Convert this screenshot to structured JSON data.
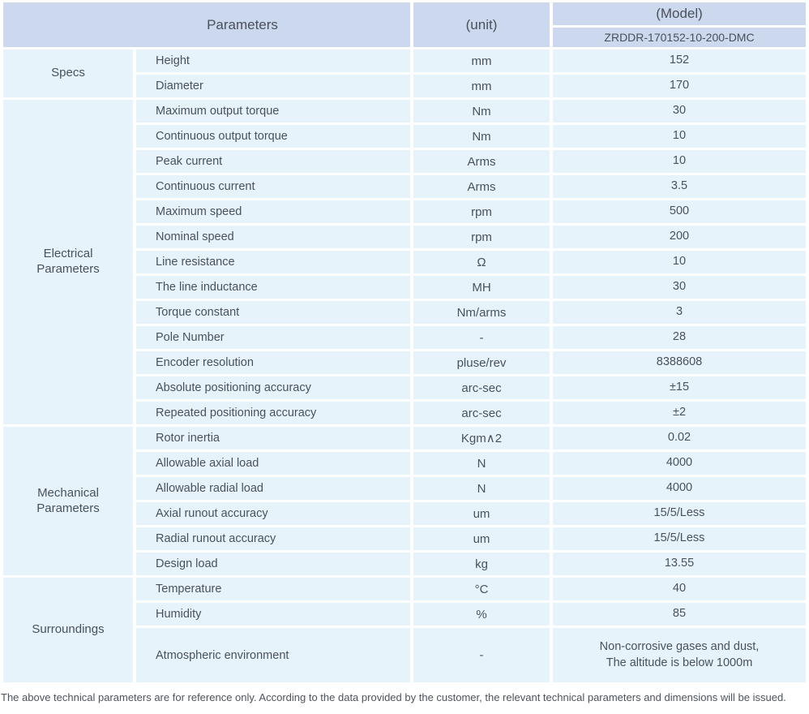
{
  "header": {
    "parameters_label": "Parameters",
    "unit_label": "(unit)",
    "model_label": "(Model)",
    "model_value": "ZRDDR-170152-10-200-DMC"
  },
  "sections": [
    {
      "name": "Specs",
      "rows": [
        {
          "param": "Height",
          "unit": "mm",
          "value": "152"
        },
        {
          "param": "Diameter",
          "unit": "mm",
          "value": "170"
        }
      ]
    },
    {
      "name": "Electrical\nParameters",
      "rows": [
        {
          "param": "Maximum output torque",
          "unit": "Nm",
          "value": "30"
        },
        {
          "param": "Continuous output torque",
          "unit": "Nm",
          "value": "10"
        },
        {
          "param": "Peak current",
          "unit": "Arms",
          "value": "10"
        },
        {
          "param": "Continuous current",
          "unit": "Arms",
          "value": "3.5"
        },
        {
          "param": "Maximum speed",
          "unit": "rpm",
          "value": "500"
        },
        {
          "param": "Nominal speed",
          "unit": "rpm",
          "value": "200"
        },
        {
          "param": "Line resistance",
          "unit": "Ω",
          "value": "10"
        },
        {
          "param": "The line inductance",
          "unit": "MH",
          "value": "30"
        },
        {
          "param": "Torque constant",
          "unit": "Nm/arms",
          "value": "3"
        },
        {
          "param": "Pole Number",
          "unit": "-",
          "value": "28"
        },
        {
          "param": "Encoder resolution",
          "unit": "pluse/rev",
          "value": "8388608"
        },
        {
          "param": "Absolute positioning accuracy",
          "unit": "arc-sec",
          "value": "±15"
        },
        {
          "param": "Repeated positioning accuracy",
          "unit": "arc-sec",
          "value": "±2"
        }
      ]
    },
    {
      "name": "Mechanical\nParameters",
      "rows": [
        {
          "param": "Rotor inertia",
          "unit": "Kgm∧2",
          "value": "0.02"
        },
        {
          "param": "Allowable axial load",
          "unit": "N",
          "value": "4000"
        },
        {
          "param": "Allowable radial load",
          "unit": "N",
          "value": "4000"
        },
        {
          "param": "Axial runout accuracy",
          "unit": "um",
          "value": "15/5/Less"
        },
        {
          "param": "Radial runout accuracy",
          "unit": "um",
          "value": "15/5/Less"
        },
        {
          "param": "Design load",
          "unit": "kg",
          "value": "13.55"
        }
      ]
    },
    {
      "name": "Surroundings",
      "rows": [
        {
          "param": "Temperature",
          "unit": "°C",
          "value": "40"
        },
        {
          "param": "Humidity",
          "unit": "%",
          "value": "85"
        },
        {
          "param": "Atmospheric environment",
          "unit": "-",
          "value": "Non-corrosive gases and dust,\nThe altitude is below 1000m",
          "tall": true
        }
      ]
    }
  ],
  "footer": {
    "note": "The above technical parameters are for reference only. According to the data provided by the customer, the relevant technical parameters and dimensions will be issued."
  },
  "colors": {
    "header_bg": "#ccd8ed",
    "row_bg": "#e7f3fb",
    "text": "#4a515b"
  }
}
